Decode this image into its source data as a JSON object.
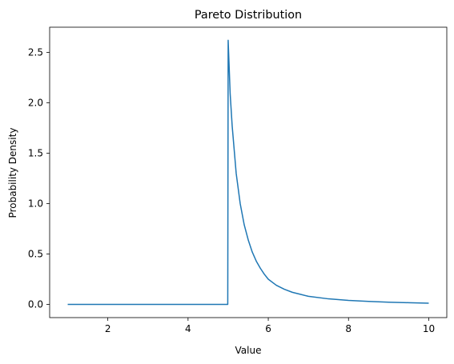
{
  "chart_data": {
    "type": "line",
    "title": "Pareto Distribution",
    "xlabel": "Value",
    "ylabel": "Probability Density",
    "xlim": [
      0.55,
      10.45
    ],
    "ylim": [
      -0.131,
      2.75
    ],
    "xticks": [
      2,
      4,
      6,
      8,
      10
    ],
    "yticks": [
      0.0,
      0.5,
      1.0,
      1.5,
      2.0,
      2.5
    ],
    "xtick_labels": [
      "2",
      "4",
      "6",
      "8",
      "10"
    ],
    "ytick_labels": [
      "0.0",
      "0.5",
      "1.0",
      "1.5",
      "2.0",
      "2.5"
    ],
    "grid": false,
    "series": [
      {
        "color": "#1f77b4",
        "x": [
          1.0,
          2.0,
          3.0,
          4.0,
          4.99,
          5.0,
          5.05,
          5.1,
          5.2,
          5.3,
          5.4,
          5.5,
          5.6,
          5.7,
          5.8,
          5.9,
          6.0,
          6.2,
          6.4,
          6.6,
          6.8,
          7.0,
          7.5,
          8.0,
          8.5,
          9.0,
          9.5,
          10.0
        ],
        "y": [
          0.0,
          0.0,
          0.0,
          0.0,
          0.0,
          2.62,
          2.09,
          1.77,
          1.3,
          1.0,
          0.79,
          0.64,
          0.52,
          0.43,
          0.36,
          0.3,
          0.25,
          0.19,
          0.15,
          0.12,
          0.1,
          0.08,
          0.055,
          0.04,
          0.03,
          0.022,
          0.017,
          0.012
        ]
      }
    ]
  }
}
